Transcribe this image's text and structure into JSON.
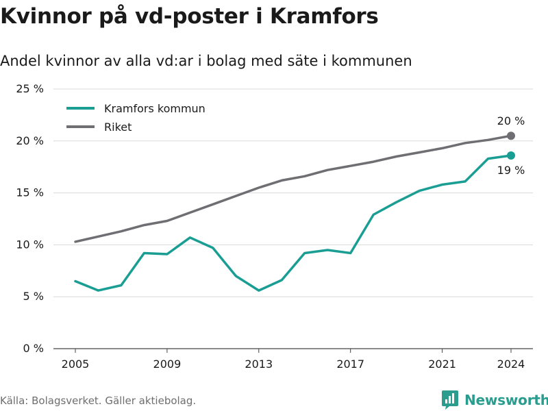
{
  "header": {
    "title": "Kvinnor på vd-poster i Kramfors",
    "subtitle": "Andel kvinnor av alla vd:ar i bolag med säte i kommunen"
  },
  "footer": {
    "source": "Källa: Bolagsverket. Gäller aktiebolag.",
    "brand": "Newsworthy",
    "brand_icon": "bar-chart-logo-icon"
  },
  "colors": {
    "kramfors": "#1a9e94",
    "riket": "#6e6e73",
    "grid": "#d9d9d9",
    "brand": "#2a9d8f"
  },
  "chart_data": {
    "type": "line",
    "title": "Kvinnor på vd-poster i Kramfors",
    "subtitle": "Andel kvinnor av alla vd:ar i bolag med säte i kommunen",
    "ylim": [
      0,
      25
    ],
    "y_ticks": [
      0,
      5,
      10,
      15,
      20,
      25
    ],
    "y_tick_labels": [
      "0 %",
      "5 %",
      "10 %",
      "15 %",
      "20 %",
      "25 %"
    ],
    "x_ticks": [
      2005,
      2009,
      2013,
      2017,
      2021,
      2024
    ],
    "x_tick_labels": [
      "2005",
      "2009",
      "2013",
      "2017",
      "2021",
      "2024"
    ],
    "grid": true,
    "legend_position": "top-left",
    "x": [
      2005,
      2006,
      2007,
      2008,
      2009,
      2010,
      2011,
      2012,
      2013,
      2014,
      2015,
      2016,
      2017,
      2018,
      2019,
      2020,
      2021,
      2022,
      2023,
      2024
    ],
    "series": [
      {
        "name": "Kramfors kommun",
        "color": "#1a9e94",
        "values": [
          6.5,
          5.6,
          6.1,
          9.2,
          9.1,
          10.7,
          9.7,
          7.0,
          5.6,
          6.6,
          9.2,
          9.5,
          9.2,
          12.9,
          14.1,
          15.2,
          15.8,
          16.1,
          18.3,
          18.6
        ],
        "end_label": "19 %"
      },
      {
        "name": "Riket",
        "color": "#6e6e73",
        "values": [
          10.3,
          10.8,
          11.3,
          11.9,
          12.3,
          13.1,
          13.9,
          14.7,
          15.5,
          16.2,
          16.6,
          17.2,
          17.6,
          18.0,
          18.5,
          18.9,
          19.3,
          19.8,
          20.1,
          20.5
        ],
        "end_label": "20 %"
      }
    ]
  }
}
